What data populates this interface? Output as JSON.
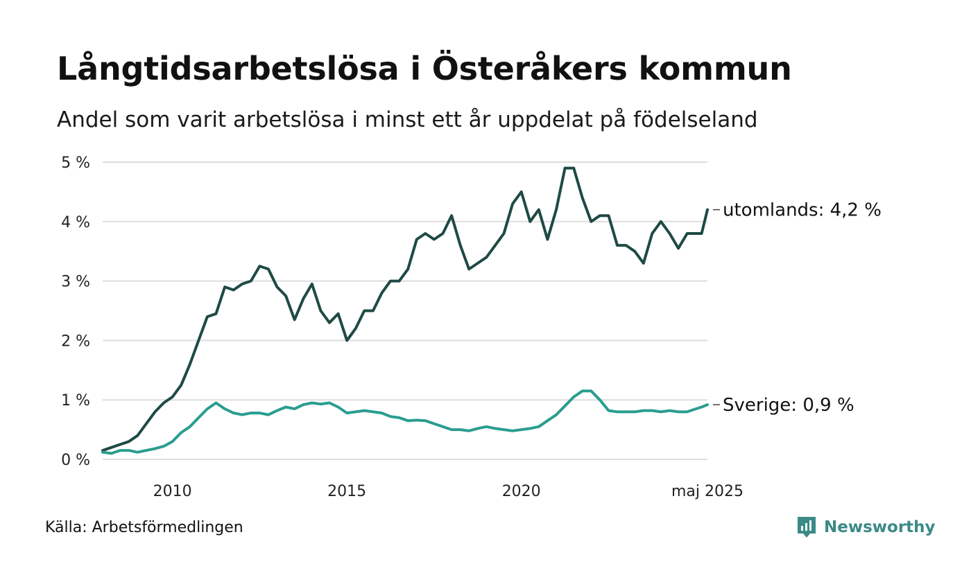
{
  "title": "Långtidsarbetslösa i Österåkers kommun",
  "subtitle": "Andel som varit arbetslösa i minst ett år uppdelat på födelseland",
  "source": "Källa: Arbetsförmedlingen",
  "brand": "Newsworthy",
  "colors": {
    "utomlands": "#1f4a45",
    "sverige": "#2a9d8f",
    "grid": "#dddddd",
    "brand": "#3b8a86"
  },
  "chart_data": {
    "type": "line",
    "x_start": "2008-01",
    "x_end": "2025-05",
    "ylim": [
      0,
      5
    ],
    "yticks": [
      "0 %",
      "1 %",
      "2 %",
      "3 %",
      "4 %",
      "5 %"
    ],
    "xticks": [
      {
        "label": "2010",
        "date": "2010-01"
      },
      {
        "label": "2015",
        "date": "2015-01"
      },
      {
        "label": "2020",
        "date": "2020-01"
      },
      {
        "label": "maj 2025",
        "date": "2025-05"
      }
    ],
    "grid": true,
    "series": [
      {
        "key": "utomlands",
        "end_label": "utomlands: 4,2 %",
        "points": [
          [
            "2008-01",
            0.15
          ],
          [
            "2008-04",
            0.2
          ],
          [
            "2008-07",
            0.25
          ],
          [
            "2008-10",
            0.3
          ],
          [
            "2009-01",
            0.4
          ],
          [
            "2009-04",
            0.6
          ],
          [
            "2009-07",
            0.8
          ],
          [
            "2009-10",
            0.95
          ],
          [
            "2010-01",
            1.05
          ],
          [
            "2010-04",
            1.25
          ],
          [
            "2010-07",
            1.6
          ],
          [
            "2010-10",
            2.0
          ],
          [
            "2011-01",
            2.4
          ],
          [
            "2011-04",
            2.45
          ],
          [
            "2011-07",
            2.9
          ],
          [
            "2011-10",
            2.85
          ],
          [
            "2012-01",
            2.95
          ],
          [
            "2012-04",
            3.0
          ],
          [
            "2012-07",
            3.25
          ],
          [
            "2012-10",
            3.2
          ],
          [
            "2013-01",
            2.9
          ],
          [
            "2013-04",
            2.75
          ],
          [
            "2013-07",
            2.35
          ],
          [
            "2013-10",
            2.7
          ],
          [
            "2014-01",
            2.95
          ],
          [
            "2014-04",
            2.5
          ],
          [
            "2014-07",
            2.3
          ],
          [
            "2014-10",
            2.45
          ],
          [
            "2015-01",
            2.0
          ],
          [
            "2015-04",
            2.2
          ],
          [
            "2015-07",
            2.5
          ],
          [
            "2015-10",
            2.5
          ],
          [
            "2016-01",
            2.8
          ],
          [
            "2016-04",
            3.0
          ],
          [
            "2016-07",
            3.0
          ],
          [
            "2016-10",
            3.2
          ],
          [
            "2017-01",
            3.7
          ],
          [
            "2017-04",
            3.8
          ],
          [
            "2017-07",
            3.7
          ],
          [
            "2017-10",
            3.8
          ],
          [
            "2018-01",
            4.1
          ],
          [
            "2018-04",
            3.6
          ],
          [
            "2018-07",
            3.2
          ],
          [
            "2018-10",
            3.3
          ],
          [
            "2019-01",
            3.4
          ],
          [
            "2019-04",
            3.6
          ],
          [
            "2019-07",
            3.8
          ],
          [
            "2019-10",
            4.3
          ],
          [
            "2020-01",
            4.5
          ],
          [
            "2020-04",
            4.0
          ],
          [
            "2020-07",
            4.2
          ],
          [
            "2020-10",
            3.7
          ],
          [
            "2021-01",
            4.2
          ],
          [
            "2021-04",
            4.9
          ],
          [
            "2021-07",
            4.9
          ],
          [
            "2021-10",
            4.4
          ],
          [
            "2022-01",
            4.0
          ],
          [
            "2022-04",
            4.1
          ],
          [
            "2022-07",
            4.1
          ],
          [
            "2022-10",
            3.6
          ],
          [
            "2023-01",
            3.6
          ],
          [
            "2023-04",
            3.5
          ],
          [
            "2023-07",
            3.3
          ],
          [
            "2023-10",
            3.8
          ],
          [
            "2024-01",
            4.0
          ],
          [
            "2024-04",
            3.8
          ],
          [
            "2024-07",
            3.55
          ],
          [
            "2024-10",
            3.8
          ],
          [
            "2025-01",
            3.8
          ],
          [
            "2025-03",
            3.8
          ],
          [
            "2025-05",
            4.2
          ]
        ]
      },
      {
        "key": "sverige",
        "end_label": "Sverige: 0,9 %",
        "points": [
          [
            "2008-01",
            0.12
          ],
          [
            "2008-04",
            0.1
          ],
          [
            "2008-07",
            0.15
          ],
          [
            "2008-10",
            0.15
          ],
          [
            "2009-01",
            0.12
          ],
          [
            "2009-04",
            0.15
          ],
          [
            "2009-07",
            0.18
          ],
          [
            "2009-10",
            0.22
          ],
          [
            "2010-01",
            0.3
          ],
          [
            "2010-04",
            0.45
          ],
          [
            "2010-07",
            0.55
          ],
          [
            "2010-10",
            0.7
          ],
          [
            "2011-01",
            0.85
          ],
          [
            "2011-04",
            0.95
          ],
          [
            "2011-07",
            0.85
          ],
          [
            "2011-10",
            0.78
          ],
          [
            "2012-01",
            0.75
          ],
          [
            "2012-04",
            0.78
          ],
          [
            "2012-07",
            0.78
          ],
          [
            "2012-10",
            0.75
          ],
          [
            "2013-01",
            0.82
          ],
          [
            "2013-04",
            0.88
          ],
          [
            "2013-07",
            0.85
          ],
          [
            "2013-10",
            0.92
          ],
          [
            "2014-01",
            0.95
          ],
          [
            "2014-04",
            0.93
          ],
          [
            "2014-07",
            0.95
          ],
          [
            "2014-10",
            0.88
          ],
          [
            "2015-01",
            0.78
          ],
          [
            "2015-04",
            0.8
          ],
          [
            "2015-07",
            0.82
          ],
          [
            "2015-10",
            0.8
          ],
          [
            "2016-01",
            0.78
          ],
          [
            "2016-04",
            0.72
          ],
          [
            "2016-07",
            0.7
          ],
          [
            "2016-10",
            0.65
          ],
          [
            "2017-01",
            0.66
          ],
          [
            "2017-04",
            0.65
          ],
          [
            "2017-07",
            0.6
          ],
          [
            "2017-10",
            0.55
          ],
          [
            "2018-01",
            0.5
          ],
          [
            "2018-04",
            0.5
          ],
          [
            "2018-07",
            0.48
          ],
          [
            "2018-10",
            0.52
          ],
          [
            "2019-01",
            0.55
          ],
          [
            "2019-04",
            0.52
          ],
          [
            "2019-07",
            0.5
          ],
          [
            "2019-10",
            0.48
          ],
          [
            "2020-01",
            0.5
          ],
          [
            "2020-04",
            0.52
          ],
          [
            "2020-07",
            0.55
          ],
          [
            "2020-10",
            0.65
          ],
          [
            "2021-01",
            0.75
          ],
          [
            "2021-04",
            0.9
          ],
          [
            "2021-07",
            1.05
          ],
          [
            "2021-10",
            1.15
          ],
          [
            "2022-01",
            1.15
          ],
          [
            "2022-04",
            1.0
          ],
          [
            "2022-07",
            0.82
          ],
          [
            "2022-10",
            0.8
          ],
          [
            "2023-01",
            0.8
          ],
          [
            "2023-04",
            0.8
          ],
          [
            "2023-07",
            0.82
          ],
          [
            "2023-10",
            0.82
          ],
          [
            "2024-01",
            0.8
          ],
          [
            "2024-04",
            0.82
          ],
          [
            "2024-07",
            0.8
          ],
          [
            "2024-10",
            0.8
          ],
          [
            "2025-01",
            0.85
          ],
          [
            "2025-03",
            0.88
          ],
          [
            "2025-05",
            0.92
          ]
        ]
      }
    ]
  }
}
